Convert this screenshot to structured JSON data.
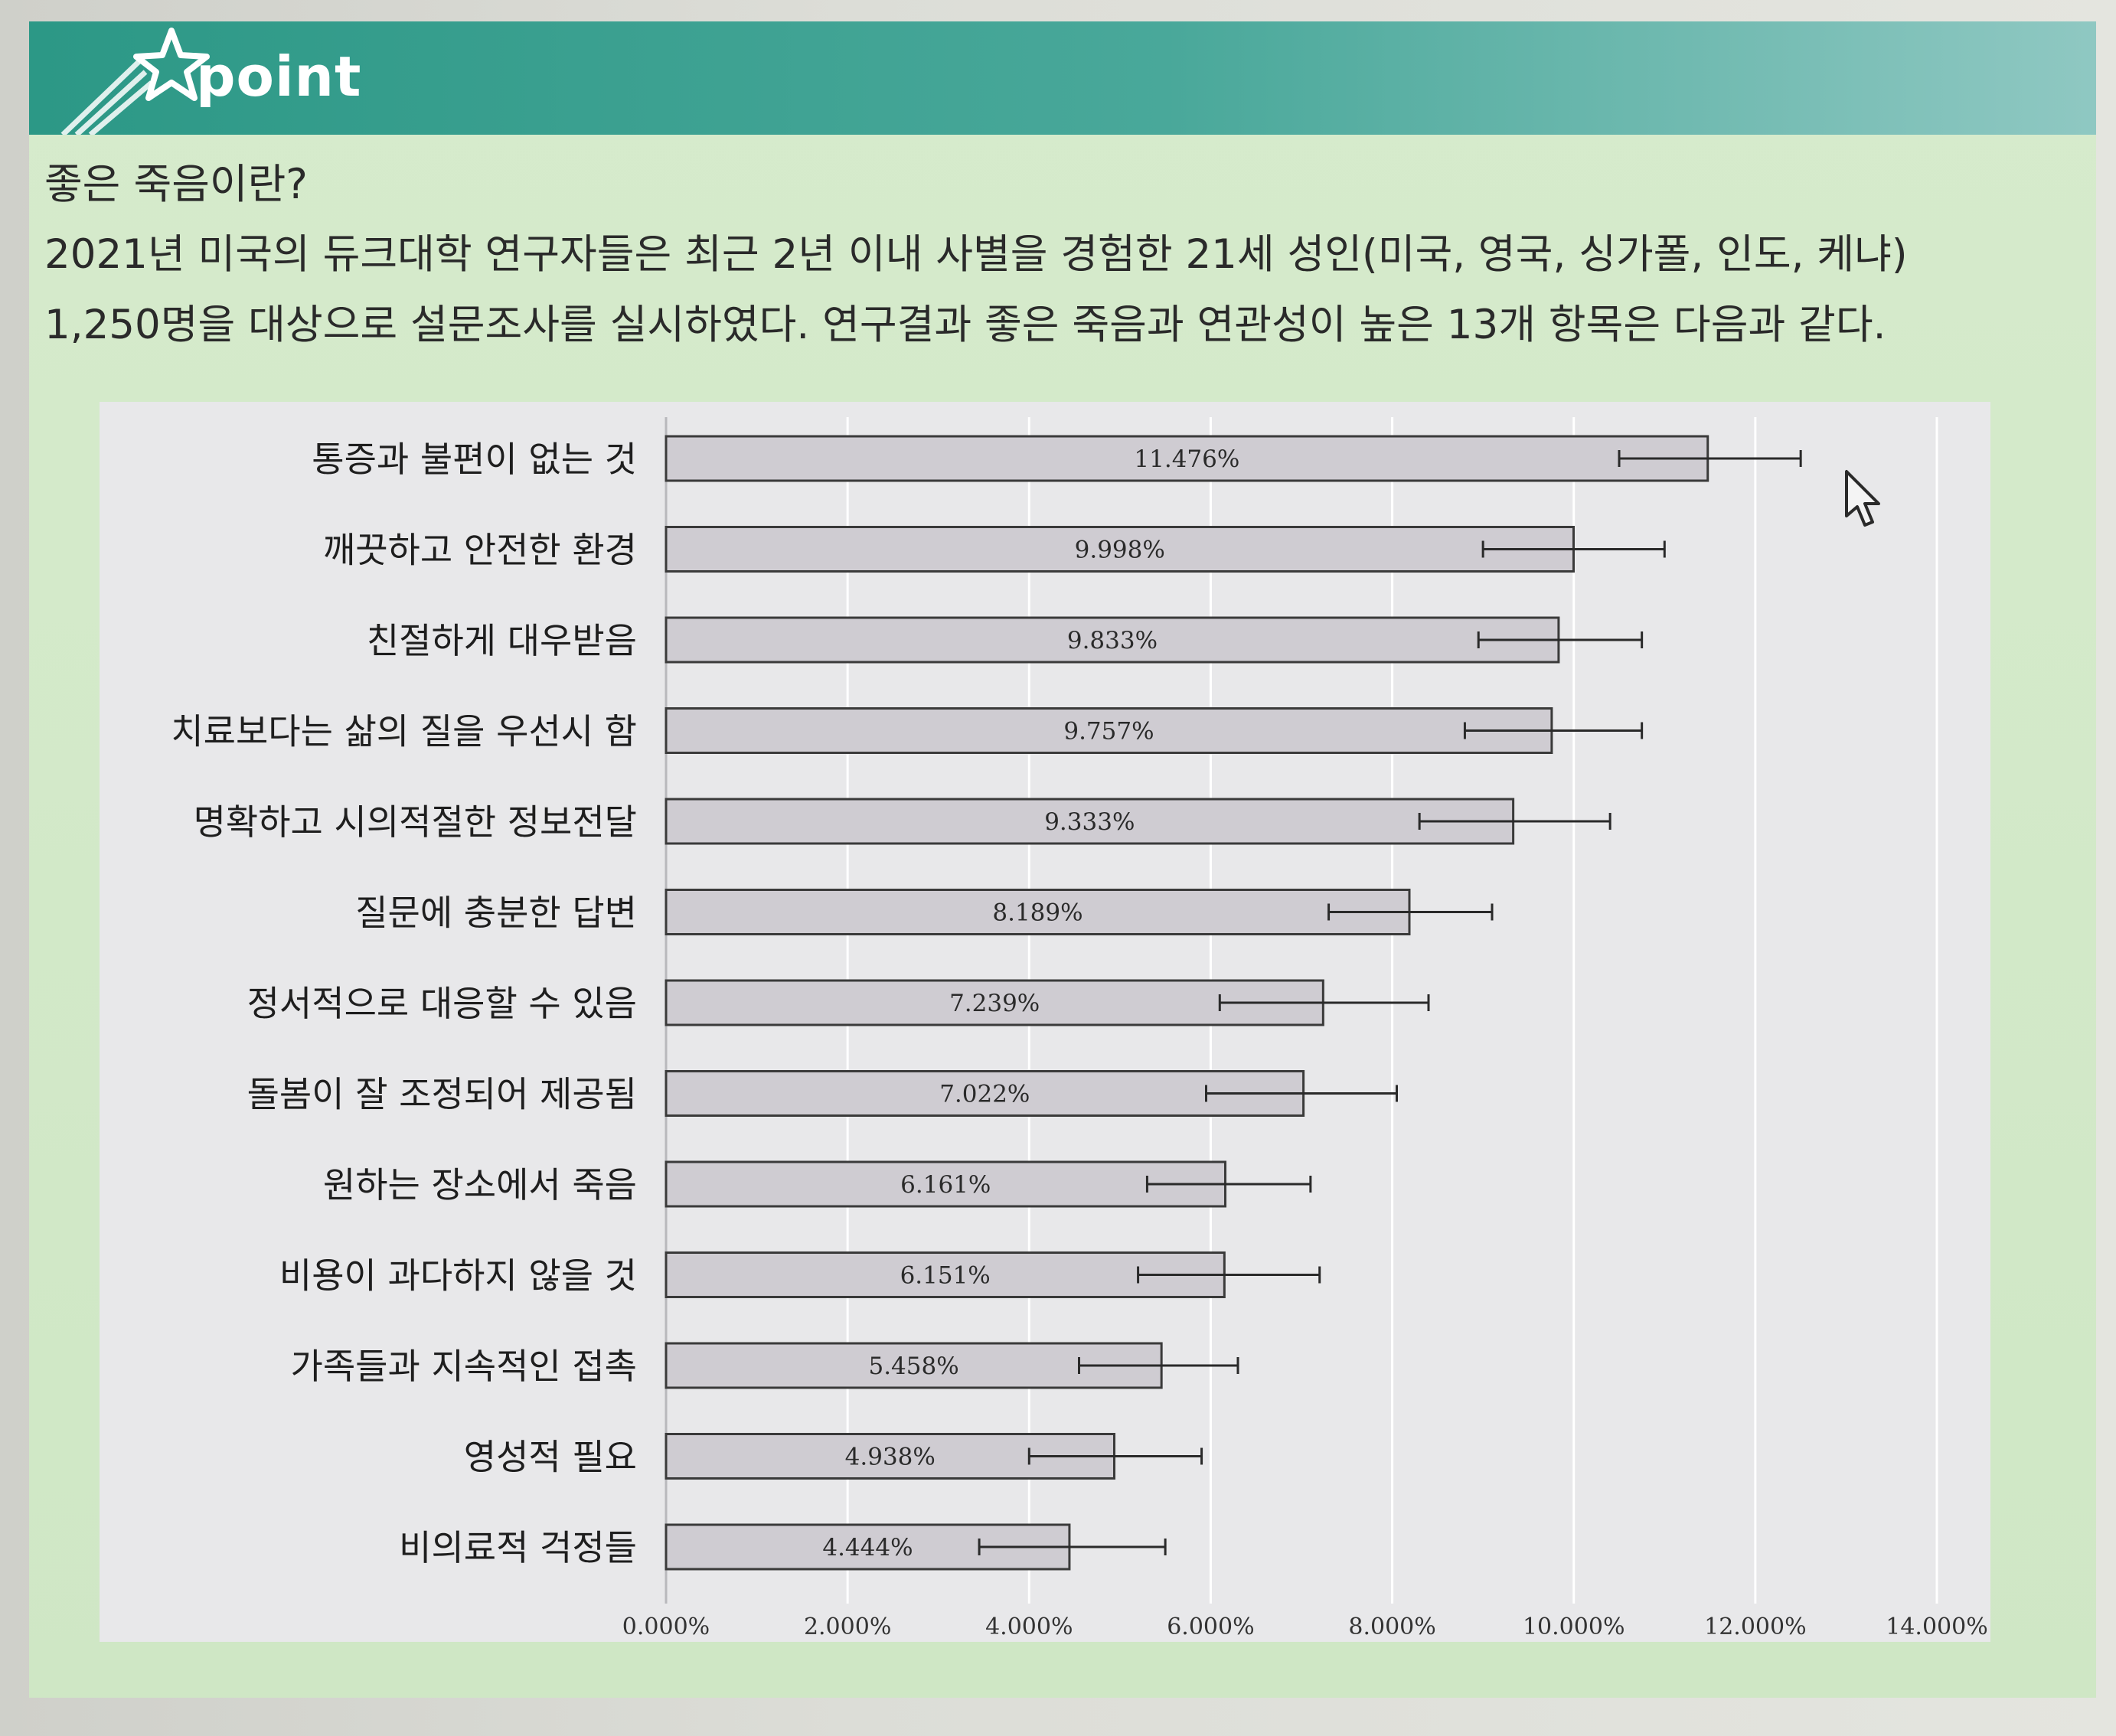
{
  "banner": {
    "title": "point",
    "icon": "shooting-star-icon"
  },
  "intro": {
    "heading": "좋은 죽음이란?",
    "line1": "2021년 미국의 듀크대학 연구자들은 최근 2년 이내 사별을 경험한 21세 성인(미국, 영국, 싱가폴, 인도, 케냐)",
    "line2": "1,250명을 대상으로 설문조사를 실시하였다. 연구결과 좋은 죽음과 연관성이 높은 13개 항목은 다음과 같다."
  },
  "colors": {
    "banner": "#2c9886",
    "card_background": "#d6ebcc",
    "chart_background": "#e8e8ea",
    "bar_fill": "#cfccd2",
    "bar_stroke": "#3a3a3a"
  },
  "chart_data": {
    "type": "bar",
    "orientation": "horizontal",
    "categories": [
      "통증과 불편이 없는 것",
      "깨끗하고 안전한 환경",
      "친절하게 대우받음",
      "치료보다는 삶의 질을 우선시 함",
      "명확하고 시의적절한 정보전달",
      "질문에 충분한 답변",
      "정서적으로 대응할 수 있음",
      "돌봄이 잘 조정되어 제공됨",
      "원하는 장소에서 죽음",
      "비용이 과다하지 않을 것",
      "가족들과 지속적인 접촉",
      "영성적 필요",
      "비의료적 걱정들"
    ],
    "values": [
      11.476,
      9.998,
      9.833,
      9.757,
      9.333,
      8.189,
      7.239,
      7.022,
      6.161,
      6.151,
      5.458,
      4.938,
      4.444
    ],
    "value_labels": [
      "11.476%",
      "9.998%",
      "9.833%",
      "9.757%",
      "9.333%",
      "8.189%",
      "7.239%",
      "7.022%",
      "6.161%",
      "6.151%",
      "5.458%",
      "4.938%",
      "4.444%"
    ],
    "error_low": [
      10.5,
      9.0,
      8.95,
      8.8,
      8.3,
      7.3,
      6.1,
      5.95,
      5.3,
      5.2,
      4.55,
      4.0,
      3.45
    ],
    "error_high": [
      12.5,
      11.0,
      10.75,
      10.75,
      10.4,
      9.1,
      8.4,
      8.05,
      7.1,
      7.2,
      6.3,
      5.9,
      5.5
    ],
    "xlim": [
      0,
      14
    ],
    "x_ticks": [
      0,
      2,
      4,
      6,
      8,
      10,
      12,
      14
    ],
    "x_tick_labels": [
      "0.000%",
      "2.000%",
      "4.000%",
      "6.000%",
      "8.000%",
      "10.000%",
      "12.000%",
      "14.000%"
    ],
    "title": "",
    "xlabel": "",
    "ylabel": "",
    "grid": "vertical"
  }
}
